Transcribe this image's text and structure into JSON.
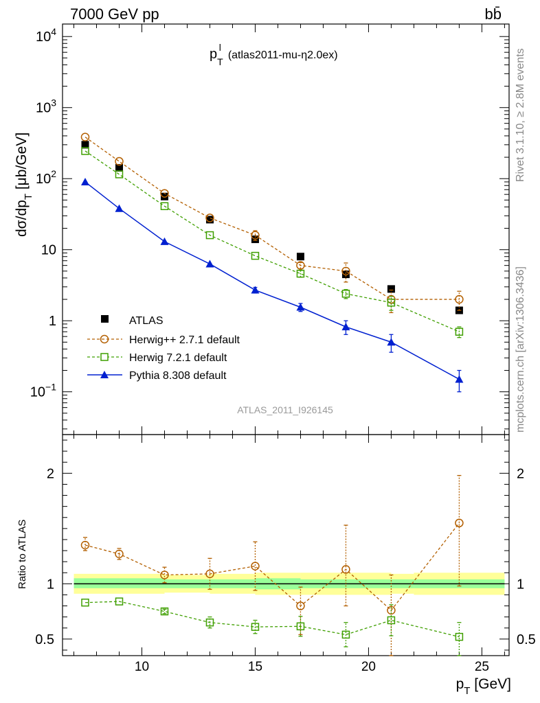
{
  "header": {
    "left": "7000 GeV pp",
    "right": "bb̄"
  },
  "side_labels": {
    "rivet": "Rivet 3.1.10, ≥ 2.8M events",
    "source": "mcplots.cern.ch [arXiv:1306.3436]"
  },
  "analysis_id": "ATLAS_2011_I926145",
  "chart_data": [
    {
      "type": "line",
      "panel": "main",
      "title": "p_T^l (atlas2011-mu-η2.0ex)",
      "title_parts": {
        "main": "p",
        "sub": "T",
        "sup": "l",
        "rest": "(atlas2011-mu-η2.0ex)"
      },
      "ylabel": "dσ/dp_T [μb/GeV]",
      "ylabel_parts": {
        "pre": "dσ/dp",
        "sub": "T",
        "post": " [μb/GeV]"
      },
      "yscale": "log",
      "xlim": [
        6.5,
        26.2
      ],
      "ylim": [
        0.025,
        15000
      ],
      "yticks": [
        {
          "value": 10000,
          "base": "10",
          "exp": "4"
        },
        {
          "value": 1000,
          "base": "10",
          "exp": "3"
        },
        {
          "value": 100,
          "base": "10",
          "exp": "2"
        },
        {
          "value": 10,
          "base": "10",
          "exp": ""
        },
        {
          "value": 1,
          "base": "1",
          "exp": ""
        },
        {
          "value": 0.1,
          "base": "10",
          "exp": "−1"
        }
      ],
      "legend_position": "lower-left",
      "x": [
        7.5,
        9,
        11,
        13,
        15,
        17,
        19,
        21,
        24
      ],
      "series": [
        {
          "name": "ATLAS",
          "marker": "square",
          "color": "#000000",
          "values": [
            300,
            142,
            56,
            26.5,
            14,
            8,
            4.5,
            2.8,
            1.4
          ]
        },
        {
          "name": "Herwig++ 2.7.1 default",
          "marker": "open-circle",
          "color": "#b35f00",
          "dashed": true,
          "values": [
            385,
            175,
            62,
            28,
            16,
            6,
            5,
            2,
            2
          ],
          "errors": [
            0,
            0,
            0,
            0,
            2.5,
            0.6,
            1.5,
            0.7,
            0.6
          ]
        },
        {
          "name": "Herwig 7.2.1 default",
          "marker": "open-square",
          "color": "#3f9f00",
          "dashed": true,
          "values": [
            245,
            115,
            41,
            16,
            8.2,
            4.6,
            2.4,
            1.8,
            0.7
          ],
          "errors": [
            0,
            0,
            0,
            0,
            0,
            0.5,
            0.35,
            0.4,
            0.12
          ]
        },
        {
          "name": "Pythia 8.308 default",
          "marker": "filled-triangle",
          "color": "#0020d0",
          "dashed": false,
          "values": [
            90,
            38,
            13,
            6.3,
            2.7,
            1.55,
            0.82,
            0.5,
            0.15
          ],
          "errors": [
            0,
            0,
            0,
            0,
            0.25,
            0.2,
            0.18,
            0.14,
            0.05
          ]
        }
      ]
    },
    {
      "type": "line",
      "panel": "ratio",
      "ylabel": "Ratio to ATLAS",
      "xlabel": "p_T [GeV]",
      "xlabel_parts": {
        "pre": "p",
        "sub": "T",
        "post": " [GeV]"
      },
      "xlim": [
        6.5,
        26.2
      ],
      "ylim": [
        0.35,
        2.35
      ],
      "xticks": [
        10,
        15,
        20,
        25
      ],
      "yticks": [
        0.5,
        1,
        2
      ],
      "reference_line": 1,
      "bands": [
        {
          "name": "yellow",
          "color": "#ffff99",
          "segments": [
            [
              7,
              9,
              0.91,
              1.09
            ],
            [
              9,
              11,
              0.91,
              1.09
            ],
            [
              11,
              13,
              0.92,
              1.08
            ],
            [
              13,
              15,
              0.91,
              1.09
            ],
            [
              15,
              17,
              0.9,
              1.1
            ],
            [
              17,
              19,
              0.9,
              1.1
            ],
            [
              19,
              21,
              0.9,
              1.1
            ],
            [
              21,
              22,
              0.91,
              1.09
            ],
            [
              22,
              26,
              0.9,
              1.1
            ]
          ]
        },
        {
          "name": "green",
          "color": "#99ff99",
          "segments": [
            [
              7,
              9,
              0.96,
              1.05
            ],
            [
              9,
              11,
              0.96,
              1.05
            ],
            [
              11,
              13,
              0.96,
              1.04
            ],
            [
              13,
              15,
              0.96,
              1.04
            ],
            [
              15,
              17,
              0.95,
              1.05
            ],
            [
              17,
              19,
              0.96,
              1.04
            ],
            [
              19,
              21,
              0.96,
              1.04
            ],
            [
              21,
              22,
              0.96,
              1.04
            ],
            [
              22,
              26,
              0.96,
              1.04
            ]
          ]
        }
      ],
      "x": [
        7.5,
        9,
        11,
        13,
        15,
        17,
        19,
        21,
        24
      ],
      "series": [
        {
          "name": "Herwig++ 2.7.1 default",
          "marker": "open-circle",
          "color": "#b35f00",
          "dashed": true,
          "values": [
            1.35,
            1.27,
            1.08,
            1.09,
            1.16,
            0.8,
            1.13,
            0.76,
            1.55
          ],
          "err_low": [
            0.05,
            0.05,
            0.07,
            0.14,
            0.22,
            0.26,
            0.33,
            0.45,
            0.57
          ],
          "err_high": [
            0.07,
            0.05,
            0.07,
            0.14,
            0.22,
            0.17,
            0.4,
            0.32,
            0.43
          ]
        },
        {
          "name": "Herwig 7.2.1 default",
          "marker": "open-square",
          "color": "#3f9f00",
          "dashed": true,
          "values": [
            0.83,
            0.84,
            0.75,
            0.65,
            0.61,
            0.615,
            0.54,
            0.67,
            0.52
          ],
          "err_low": [
            0,
            0,
            0.02,
            0.05,
            0.06,
            0.09,
            0.11,
            0.14,
            0.17
          ],
          "err_high": [
            0,
            0,
            0.02,
            0.05,
            0.06,
            0.09,
            0.11,
            0.14,
            0.13
          ]
        }
      ]
    }
  ],
  "icons": {
    "atlas_marker": "black-filled-square-icon",
    "herwigpp_marker": "open-circle-icon",
    "herwig7_marker": "open-square-icon",
    "pythia_marker": "filled-triangle-icon"
  }
}
